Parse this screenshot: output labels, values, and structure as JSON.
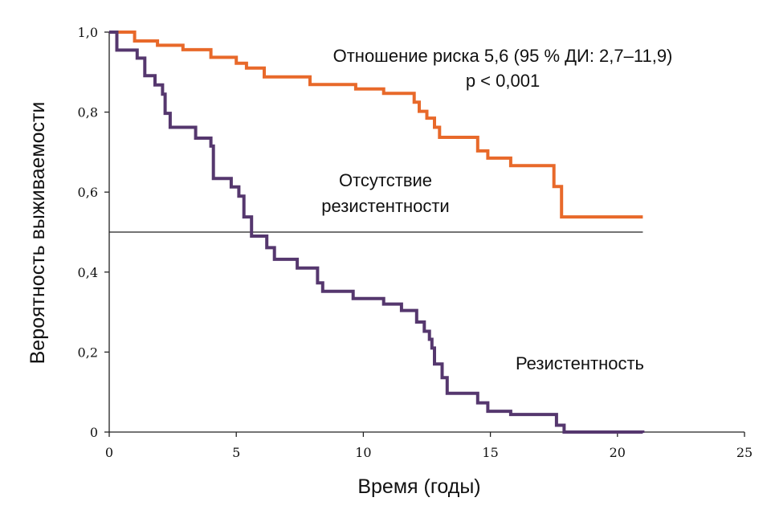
{
  "chart_data": {
    "type": "line",
    "step": true,
    "xlabel": "Время (годы)",
    "ylabel": "Вероятность выживаемости",
    "xlim": [
      0,
      25
    ],
    "ylim": [
      0,
      1
    ],
    "x_ticks": [
      0,
      5,
      10,
      15,
      20,
      25
    ],
    "x_tick_labels": [
      "0",
      "5",
      "10",
      "15",
      "20",
      "25"
    ],
    "y_ticks": [
      0,
      0.2,
      0.4,
      0.6,
      0.8,
      1.0
    ],
    "y_tick_labels": [
      "0",
      "0,2",
      "0,4",
      "0,6",
      "0,8",
      "1,0"
    ],
    "grid": false,
    "reference_line": {
      "y": 0.5,
      "x": [
        0,
        21
      ]
    },
    "annotation": {
      "line1": "Отношение риска 5,6 (95 % ДИ: 2,7–11,9)",
      "line2": "p < 0,001"
    },
    "series": [
      {
        "name": "Отсутствие резистентности",
        "label_lines": [
          "Отсутствие",
          "резистентности"
        ],
        "color": "#e8692a",
        "points": [
          [
            0,
            1.0
          ],
          [
            1.0,
            0.978
          ],
          [
            1.9,
            0.967
          ],
          [
            2.9,
            0.956
          ],
          [
            4.0,
            0.937
          ],
          [
            5.0,
            0.922
          ],
          [
            5.4,
            0.91
          ],
          [
            6.1,
            0.888
          ],
          [
            7.9,
            0.869
          ],
          [
            9.7,
            0.858
          ],
          [
            10.8,
            0.847
          ],
          [
            12.0,
            0.825
          ],
          [
            12.2,
            0.802
          ],
          [
            12.5,
            0.785
          ],
          [
            12.8,
            0.762
          ],
          [
            13.0,
            0.737
          ],
          [
            14.5,
            0.703
          ],
          [
            14.9,
            0.685
          ],
          [
            15.8,
            0.666
          ],
          [
            17.5,
            0.614
          ],
          [
            17.8,
            0.538
          ],
          [
            21.0,
            0.538
          ]
        ]
      },
      {
        "name": "Резистентность",
        "label_lines": [
          "Резистентность"
        ],
        "color": "#55376e",
        "points": [
          [
            0,
            1.0
          ],
          [
            0.3,
            0.955
          ],
          [
            1.1,
            0.935
          ],
          [
            1.4,
            0.891
          ],
          [
            1.8,
            0.868
          ],
          [
            2.1,
            0.845
          ],
          [
            2.2,
            0.797
          ],
          [
            2.4,
            0.762
          ],
          [
            3.4,
            0.735
          ],
          [
            4.0,
            0.715
          ],
          [
            4.1,
            0.634
          ],
          [
            4.8,
            0.613
          ],
          [
            5.1,
            0.59
          ],
          [
            5.3,
            0.538
          ],
          [
            5.6,
            0.49
          ],
          [
            6.2,
            0.461
          ],
          [
            6.5,
            0.432
          ],
          [
            7.4,
            0.41
          ],
          [
            8.2,
            0.373
          ],
          [
            8.4,
            0.352
          ],
          [
            9.6,
            0.334
          ],
          [
            10.8,
            0.32
          ],
          [
            11.5,
            0.304
          ],
          [
            12.1,
            0.275
          ],
          [
            12.4,
            0.252
          ],
          [
            12.6,
            0.232
          ],
          [
            12.7,
            0.21
          ],
          [
            12.8,
            0.17
          ],
          [
            13.1,
            0.136
          ],
          [
            13.3,
            0.097
          ],
          [
            14.5,
            0.073
          ],
          [
            14.9,
            0.052
          ],
          [
            15.8,
            0.044
          ],
          [
            17.6,
            0.017
          ],
          [
            17.9,
            0.0
          ],
          [
            21.0,
            -0.002
          ]
        ]
      }
    ]
  }
}
